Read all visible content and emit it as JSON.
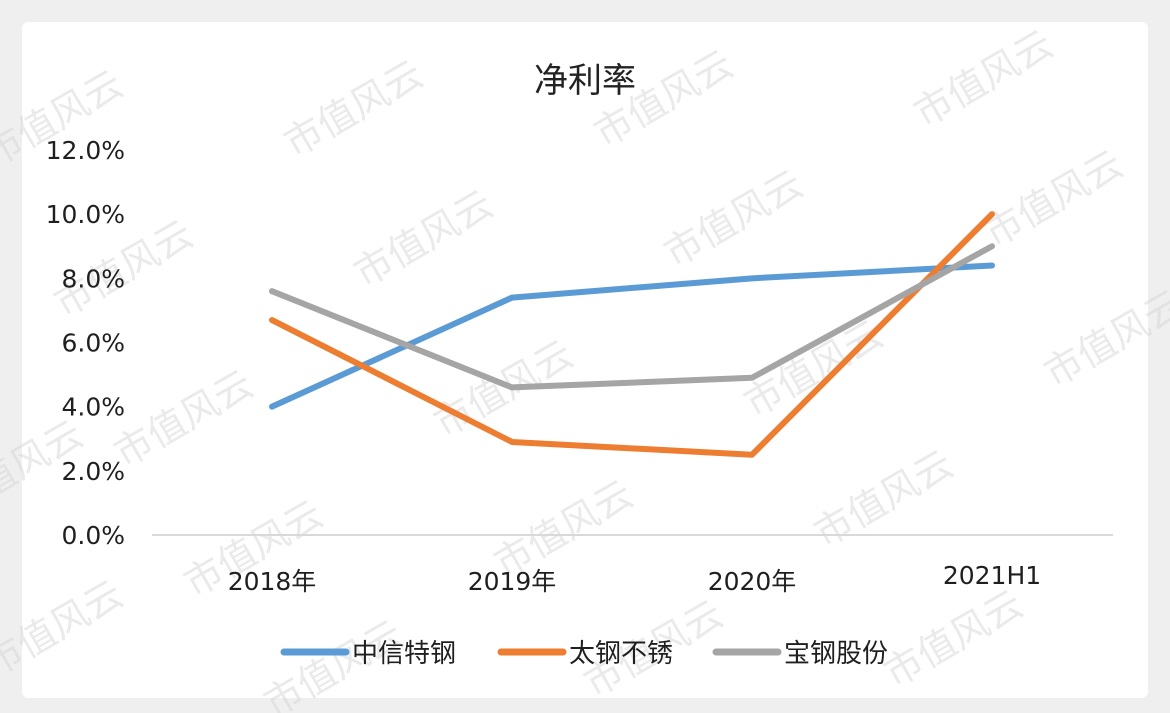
{
  "watermark": "市值风云",
  "chart_data": {
    "type": "line",
    "title": "净利率",
    "categories": [
      "2018年",
      "2019年",
      "2020年",
      "2021H1"
    ],
    "yticks": [
      "0.0%",
      "2.0%",
      "4.0%",
      "6.0%",
      "8.0%",
      "10.0%",
      "12.0%"
    ],
    "ylim": [
      0,
      12
    ],
    "grid": false,
    "legend": "bottom",
    "series": [
      {
        "name": "中信特钢",
        "color": "#5b9bd5",
        "values": [
          4.0,
          7.4,
          8.0,
          8.4
        ]
      },
      {
        "name": "太钢不锈",
        "color": "#ed7d31",
        "values": [
          6.7,
          2.9,
          2.5,
          10.0
        ]
      },
      {
        "name": "宝钢股份",
        "color": "#a5a5a5",
        "values": [
          7.6,
          4.6,
          4.9,
          9.0
        ]
      }
    ]
  }
}
